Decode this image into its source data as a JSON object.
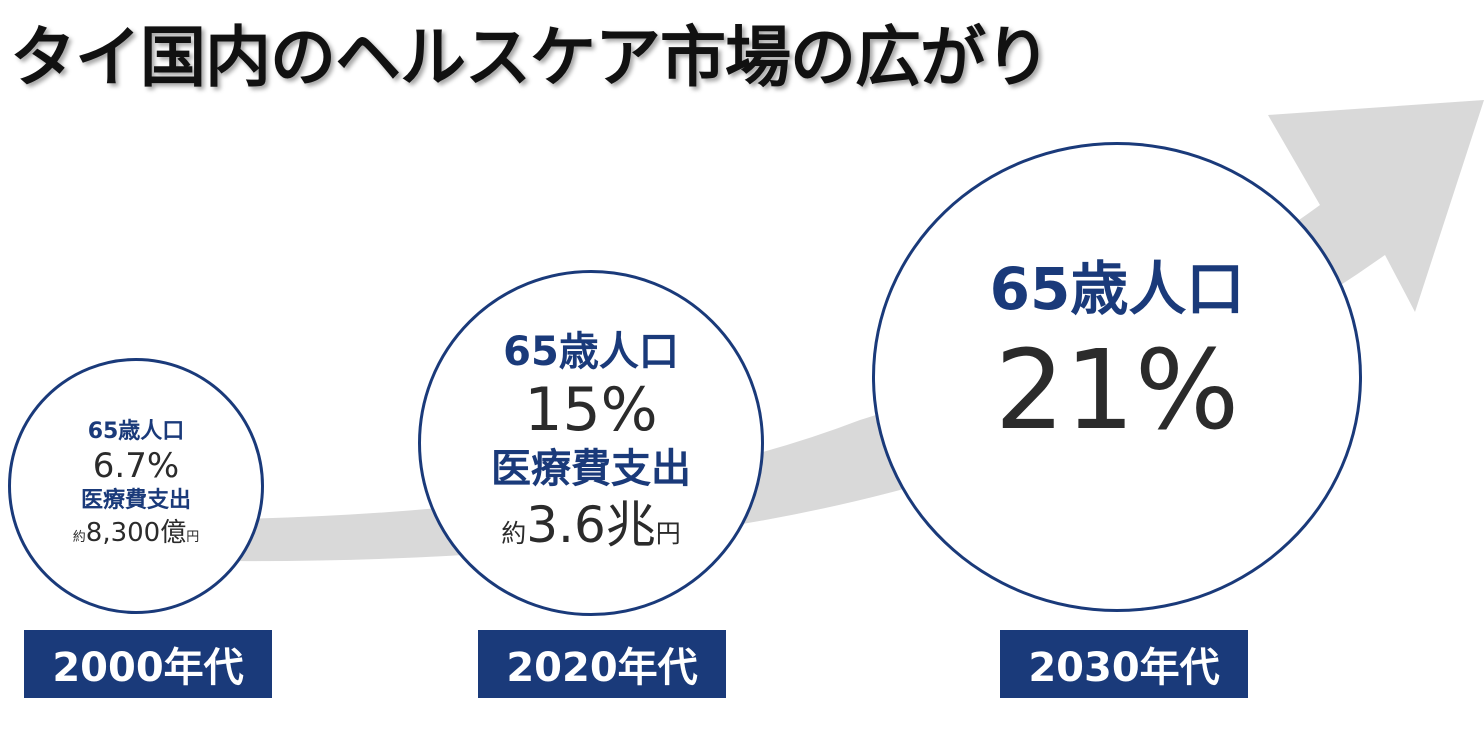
{
  "title": "タイ国内のヘルスケア市場の広がり",
  "colors": {
    "navy": "#1a3a7a",
    "arrow": "#d9d9d9",
    "text": "#2b2b2b"
  },
  "stages": [
    {
      "decade": "2000年代",
      "population_label": "65歳人口",
      "population_value": "6.7%",
      "spending_label": "医療費支出",
      "spending_prefix": "約",
      "spending_value": "8,300億",
      "spending_unit": "円"
    },
    {
      "decade": "2020年代",
      "population_label": "65歳人口",
      "population_value": "15%",
      "spending_label": "医療費支出",
      "spending_prefix": "約",
      "spending_value": "3.6兆",
      "spending_unit": "円"
    },
    {
      "decade": "2030年代",
      "population_label": "65歳人口",
      "population_value": "21%"
    }
  ]
}
